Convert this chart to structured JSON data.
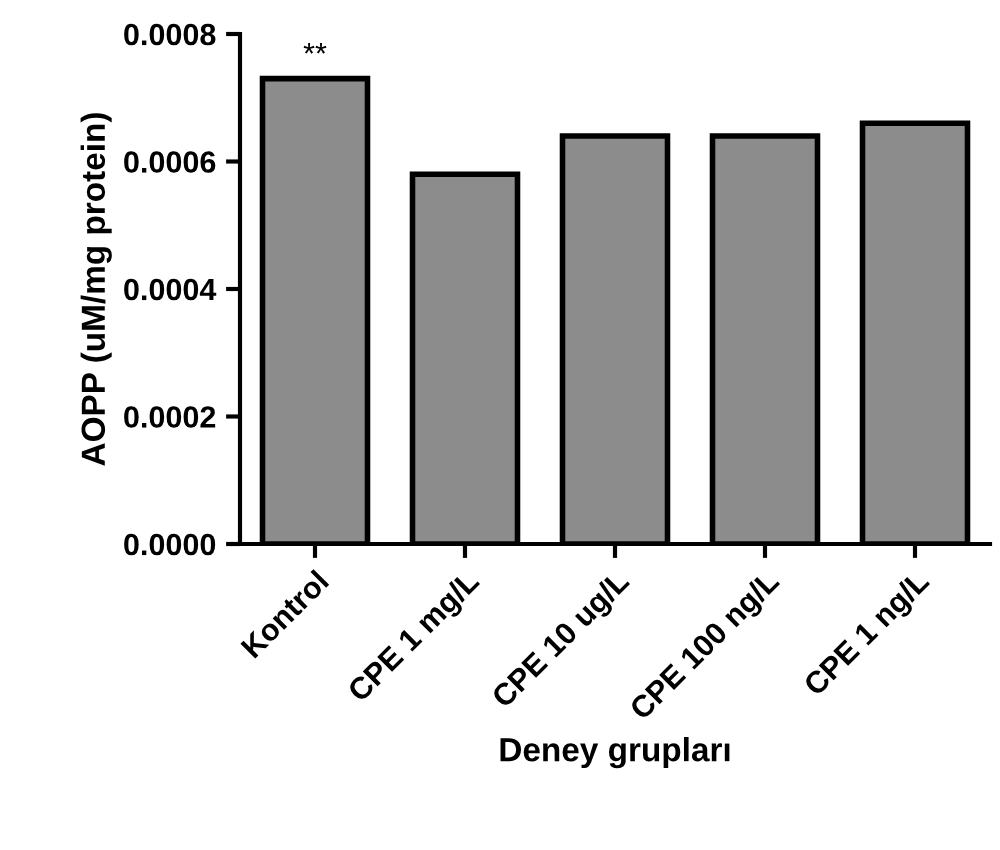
{
  "chart_data": {
    "type": "bar",
    "xlabel": "Deney grupları",
    "ylabel": "AOPP (uM/mg protein)",
    "categories": [
      "Kontrol",
      "CPE 1 mg/L",
      "CPE 10 ug/L",
      "CPE 100 ng/L",
      "CPE 1 ng/L"
    ],
    "values": [
      0.00073,
      0.00058,
      0.00064,
      0.00064,
      0.00066
    ],
    "color": "#8c8c8c",
    "ylim": [
      0,
      0.0008
    ],
    "yticks": [
      {
        "value": 0,
        "label": "0.0000"
      },
      {
        "value": 0.0002,
        "label": "0.0002"
      },
      {
        "value": 0.0004,
        "label": "0.0004"
      },
      {
        "value": 0.0006,
        "label": "0.0006"
      },
      {
        "value": 0.0008,
        "label": "0.0008"
      }
    ],
    "annotations": [
      {
        "text": "**",
        "x": "Kontrol",
        "y": 0.00073
      }
    ],
    "grid": false,
    "legend": false
  }
}
